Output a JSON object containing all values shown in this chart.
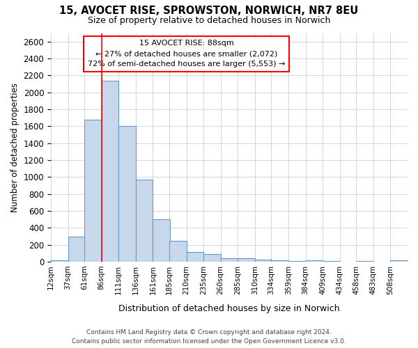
{
  "title_line1": "15, AVOCET RISE, SPROWSTON, NORWICH, NR7 8EU",
  "title_line2": "Size of property relative to detached houses in Norwich",
  "xlabel": "Distribution of detached houses by size in Norwich",
  "ylabel": "Number of detached properties",
  "footer_line1": "Contains HM Land Registry data © Crown copyright and database right 2024.",
  "footer_line2": "Contains public sector information licensed under the Open Government Licence v3.0.",
  "annotation_line1": "15 AVOCET RISE: 88sqm",
  "annotation_line2": "← 27% of detached houses are smaller (2,072)",
  "annotation_line3": "72% of semi-detached houses are larger (5,553) →",
  "bar_color": "#c8d8ec",
  "bar_edge_color": "#6898c8",
  "red_line_x": 86,
  "categories": [
    "12sqm",
    "37sqm",
    "61sqm",
    "86sqm",
    "111sqm",
    "136sqm",
    "161sqm",
    "185sqm",
    "210sqm",
    "235sqm",
    "260sqm",
    "285sqm",
    "310sqm",
    "334sqm",
    "359sqm",
    "384sqm",
    "409sqm",
    "434sqm",
    "458sqm",
    "483sqm",
    "508sqm"
  ],
  "bin_starts": [
    12,
    37,
    61,
    86,
    111,
    136,
    161,
    185,
    210,
    235,
    260,
    285,
    310,
    334,
    359,
    384,
    409,
    434,
    458,
    483,
    508
  ],
  "bin_width": 25,
  "values": [
    20,
    295,
    1675,
    2140,
    1600,
    970,
    505,
    250,
    120,
    95,
    40,
    40,
    25,
    15,
    12,
    20,
    10,
    5,
    10,
    5,
    15
  ],
  "ylim": [
    0,
    2700
  ],
  "yticks": [
    0,
    200,
    400,
    600,
    800,
    1000,
    1200,
    1400,
    1600,
    1800,
    2000,
    2200,
    2400,
    2600
  ],
  "background_color": "#ffffff",
  "grid_color": "#c8d0dc"
}
